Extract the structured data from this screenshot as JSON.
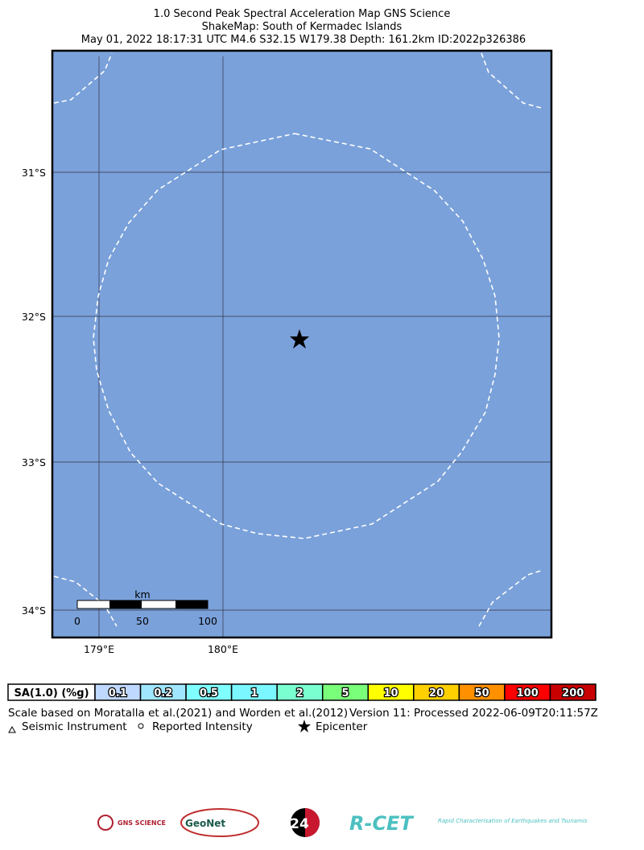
{
  "header": {
    "title": "1.0 Second Peak Spectral Acceleration Map GNS Science",
    "subtitle": "ShakeMap: South of Kermadec Islands",
    "event": "May 01, 2022 18:17:31 UTC M4.6 S32.15 W179.38 Depth: 161.2km ID:2022p326386"
  },
  "map": {
    "lat_labels": [
      "31°S",
      "32°S",
      "33°S",
      "34°S"
    ],
    "lon_labels": [
      "179°E",
      "180°E"
    ],
    "scale_bar": {
      "unit": "km",
      "labels": [
        "0",
        "50",
        "100"
      ]
    }
  },
  "legend": {
    "title": "SA(1.0) (%g)",
    "bins": [
      {
        "label": "0.1",
        "color": "#bfd8ff"
      },
      {
        "label": "0.2",
        "color": "#a0e6ff"
      },
      {
        "label": "0.5",
        "color": "#80ffff"
      },
      {
        "label": "1",
        "color": "#7af7ff"
      },
      {
        "label": "2",
        "color": "#7affd0"
      },
      {
        "label": "5",
        "color": "#7aff7a"
      },
      {
        "label": "10",
        "color": "#ffff00"
      },
      {
        "label": "20",
        "color": "#ffd000"
      },
      {
        "label": "50",
        "color": "#ff9000"
      },
      {
        "label": "100",
        "color": "#ff0000"
      },
      {
        "label": "200",
        "color": "#c80000"
      }
    ]
  },
  "footer": {
    "references": "Scale based on Moratalla et al.(2021) and Worden et al.(2012)",
    "version": "Version 11: Processed 2022-06-09T20:11:57Z",
    "symbols": [
      "Seismic Instrument",
      "Reported Intensity",
      "Epicenter"
    ]
  },
  "logos": {
    "gns": "GNS SCIENCE",
    "geonet": "GeoNet",
    "twentyfour": "24",
    "rcet": "R-CET",
    "rcet_sub": "Rapid Characterisation of Earthquakes and Tsunamis"
  }
}
